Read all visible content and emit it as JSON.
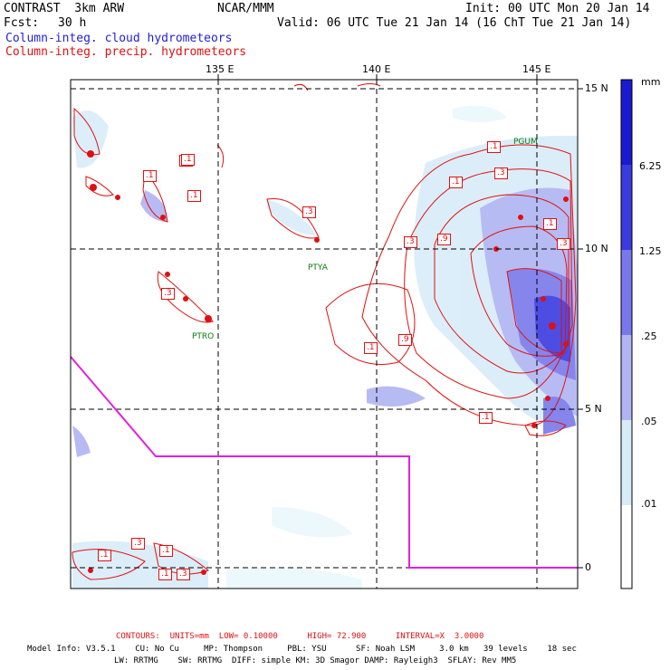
{
  "header": {
    "title_left": "CONTRAST  3km ARW",
    "center": "NCAR/MMM",
    "init": "Init: 00 UTC Mon 20 Jan 14",
    "fcst_label": "Fcst:",
    "fcst_value": "30 h",
    "valid": "Valid: 06 UTC Tue 21 Jan 14 (16 ChT Tue 21 Jan 14)",
    "legend_blue": "Column-integ. cloud hydrometeors",
    "legend_red": "Column-integ. precip. hydrometeors"
  },
  "axes": {
    "lon_labels": [
      "135 E",
      "140 E",
      "145 E"
    ],
    "lat_labels": [
      "15 N",
      "10 N",
      "5 N",
      "0"
    ]
  },
  "colorbar": {
    "unit": "mm",
    "levels": [
      "6.25",
      "1.25",
      ".25",
      ".05",
      ".01"
    ],
    "colors": [
      "#1a1ad0",
      "#3a3ae0",
      "#7878ea",
      "#b0b4f2",
      "#d8ecf8",
      "#eaf8fc",
      "#ffffff"
    ]
  },
  "stations": [
    "PGUM",
    "PTYA",
    "PTRO"
  ],
  "contour_labels": [
    ".1",
    ".1",
    ".1",
    ".3",
    ".3",
    ".9",
    ".1",
    ".3",
    ".3",
    ".1",
    ".1",
    ".9",
    ".3",
    ".1",
    ".1",
    ".3",
    ".1",
    ".1",
    ".3",
    ".1",
    ".1"
  ],
  "footer": {
    "contours": "CONTOURS:  UNITS=mm  LOW= 0.10000      HIGH= 72.900      INTERVAL=X  3.0000",
    "model_line1": "Model Info: V3.5.1    CU: No Cu     MP: Thompson     PBL: YSU      SF: Noah LSM     3.0 km   39 levels    18 sec",
    "model_line2": "LW: RRTMG    SW: RRTMG  DIFF: simple KM: 3D Smagor DAMP: Rayleigh3  SFLAY: Rev MM5"
  }
}
